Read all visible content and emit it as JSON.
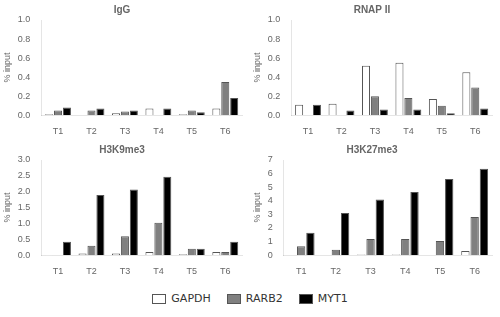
{
  "chart_data": [
    {
      "type": "bar",
      "title": "IgG",
      "categories": [
        "T1",
        "T2",
        "T3",
        "T4",
        "T5",
        "T6"
      ],
      "series": [
        {
          "name": "GAPDH",
          "color": "#ffffff",
          "values": [
            0.01,
            0.0,
            0.02,
            0.07,
            0.01,
            0.07
          ]
        },
        {
          "name": "RARB2",
          "color": "#808080",
          "values": [
            0.05,
            0.05,
            0.04,
            0.0,
            0.05,
            0.35
          ]
        },
        {
          "name": "MYT1",
          "color": "#000000",
          "values": [
            0.08,
            0.07,
            0.05,
            0.07,
            0.03,
            0.18
          ]
        }
      ],
      "ylim": [
        0,
        1
      ],
      "yticks": [
        {
          "value": 0,
          "label": "0.0"
        },
        0.2,
        0.4,
        0.6,
        0.8,
        {
          "value": 1,
          "label": "1.0"
        }
      ],
      "ylabel": "% input",
      "grid": false,
      "legend": "bottom"
    },
    {
      "type": "bar",
      "title": "RNAP II",
      "categories": [
        "T1",
        "T2",
        "T3",
        "T4",
        "T5",
        "T6"
      ],
      "series": [
        {
          "name": "GAPDH",
          "color": "#ffffff",
          "values": [
            0.11,
            0.12,
            0.52,
            0.55,
            0.17,
            0.45
          ]
        },
        {
          "name": "RARB2",
          "color": "#808080",
          "values": [
            0.0,
            0.0,
            0.2,
            0.18,
            0.1,
            0.29
          ]
        },
        {
          "name": "MYT1",
          "color": "#000000",
          "values": [
            0.11,
            0.05,
            0.06,
            0.06,
            0.02,
            0.07
          ]
        }
      ],
      "ylim": [
        0,
        1
      ],
      "yticks": [
        {
          "value": 0,
          "label": "0.0"
        },
        0.2,
        0.4,
        0.6,
        0.8,
        {
          "value": 1,
          "label": "1.0"
        }
      ],
      "ylabel": "% input",
      "grid": false,
      "legend": "bottom"
    },
    {
      "type": "bar",
      "title": "H3K9me3",
      "categories": [
        "T1",
        "T2",
        "T3",
        "T4",
        "T5",
        "T6"
      ],
      "series": [
        {
          "name": "GAPDH",
          "color": "#ffffff",
          "values": [
            0.01,
            0.05,
            0.05,
            0.1,
            0.03,
            0.1
          ]
        },
        {
          "name": "RARB2",
          "color": "#808080",
          "values": [
            0.0,
            0.3,
            0.6,
            1.02,
            0.2,
            0.1
          ]
        },
        {
          "name": "MYT1",
          "color": "#000000",
          "values": [
            0.42,
            1.9,
            2.07,
            2.47,
            0.2,
            0.42
          ]
        }
      ],
      "ylim": [
        0,
        3
      ],
      "yticks": [
        {
          "value": 0,
          "label": "0.0"
        },
        0.5,
        {
          "value": 1,
          "label": "1.0"
        },
        1.5,
        {
          "value": 2,
          "label": "2.0"
        },
        2.5,
        {
          "value": 3,
          "label": "3.0"
        }
      ],
      "ylabel": "% input",
      "grid": false,
      "legend": "bottom"
    },
    {
      "type": "bar",
      "title": "H3K27me3",
      "categories": [
        "T1",
        "T2",
        "T3",
        "T4",
        "T5",
        "T6"
      ],
      "series": [
        {
          "name": "GAPDH",
          "color": "#ffffff",
          "values": [
            0.0,
            0.0,
            0.05,
            0.05,
            0.0,
            0.3
          ]
        },
        {
          "name": "RARB2",
          "color": "#808080",
          "values": [
            0.65,
            0.4,
            1.2,
            1.2,
            1.05,
            2.8
          ]
        },
        {
          "name": "MYT1",
          "color": "#000000",
          "values": [
            1.65,
            3.1,
            4.1,
            4.65,
            5.6,
            6.35
          ]
        }
      ],
      "ylim": [
        0,
        7
      ],
      "yticks": [
        0,
        1,
        2,
        3,
        4,
        5,
        6,
        7
      ],
      "ylabel": "% input",
      "grid": false,
      "legend": "bottom"
    }
  ]
}
